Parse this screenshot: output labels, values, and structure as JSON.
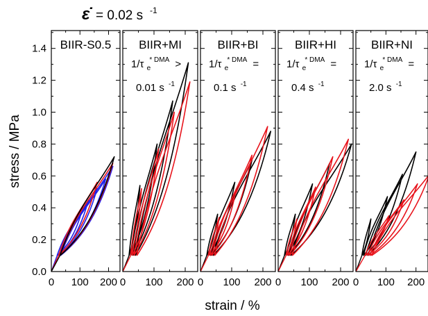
{
  "rate": {
    "symbol": "ε̇",
    "value_text": "= 0.02 s",
    "unit_exp": "-1"
  },
  "axes": {
    "ylabel": "stress / MPa",
    "xlabel": "strain / %",
    "y_ticks": [
      "0.0",
      "0.2",
      "0.4",
      "0.6",
      "0.8",
      "1.0",
      "1.2",
      "1.4"
    ],
    "x_ticks": [
      "0",
      "100",
      "200"
    ]
  },
  "colors": {
    "black": "#000000",
    "red": "#e8141c",
    "blue": "#1f1fe8"
  },
  "chart_data": [
    {
      "type": "line",
      "title": "BIIR-S0.5",
      "annotation": null,
      "xlim": [
        0,
        240
      ],
      "ylim": [
        0,
        1.5
      ],
      "grid": false,
      "series": [
        {
          "color": "blue",
          "cycles": [
            {
              "xmin": 20,
              "xmax": 110,
              "ymax": 0.4
            },
            {
              "xmin": 25,
              "xmax": 130,
              "ymax": 0.45
            },
            {
              "xmin": 28,
              "xmax": 160,
              "ymax": 0.52
            },
            {
              "xmin": 30,
              "xmax": 190,
              "ymax": 0.58
            },
            {
              "xmin": 32,
              "xmax": 215,
              "ymax": 0.66
            }
          ]
        },
        {
          "color": "red",
          "cycles": [
            {
              "xmin": 25,
              "xmax": 160,
              "ymax": 0.56
            },
            {
              "xmin": 30,
              "xmax": 215,
              "ymax": 0.68
            }
          ]
        },
        {
          "color": "black",
          "cycles": [
            {
              "xmin": 30,
              "xmax": 220,
              "ymax": 0.72
            }
          ]
        }
      ]
    },
    {
      "type": "line",
      "title": "BIIR+MI",
      "annotation": {
        "prefix": "1/τ",
        "sub": "e",
        "sup": "* DMA",
        "rel": ">",
        "value": "0.01 s",
        "exp": "-1"
      },
      "xlim": [
        0,
        240
      ],
      "ylim": [
        0,
        1.5
      ],
      "grid": false,
      "series": [
        {
          "color": "black",
          "cycles": [
            {
              "xmin": 20,
              "xmax": 55,
              "ymax": 0.54
            },
            {
              "xmin": 25,
              "xmax": 110,
              "ymax": 0.8
            },
            {
              "xmin": 32,
              "xmax": 160,
              "ymax": 1.07
            },
            {
              "xmin": 40,
              "xmax": 210,
              "ymax": 1.31
            }
          ]
        },
        {
          "color": "red",
          "cycles": [
            {
              "xmin": 25,
              "xmax": 60,
              "ymax": 0.52
            },
            {
              "xmin": 30,
              "xmax": 115,
              "ymax": 0.77
            },
            {
              "xmin": 36,
              "xmax": 165,
              "ymax": 1.0
            },
            {
              "xmin": 45,
              "xmax": 215,
              "ymax": 1.19
            }
          ]
        }
      ]
    },
    {
      "type": "line",
      "title": "BIIR+BI",
      "annotation": {
        "prefix": "1/τ",
        "sub": "e",
        "sup": "* DMA",
        "rel": "=",
        "value": "0.1 s",
        "exp": "-1"
      },
      "xlim": [
        0,
        240
      ],
      "ylim": [
        0,
        1.5
      ],
      "grid": false,
      "series": [
        {
          "color": "black",
          "cycles": [
            {
              "xmin": 20,
              "xmax": 55,
              "ymax": 0.36
            },
            {
              "xmin": 25,
              "xmax": 110,
              "ymax": 0.56
            },
            {
              "xmin": 32,
              "xmax": 165,
              "ymax": 0.7
            },
            {
              "xmin": 40,
              "xmax": 225,
              "ymax": 0.88
            }
          ]
        },
        {
          "color": "red",
          "cycles": [
            {
              "xmin": 25,
              "xmax": 60,
              "ymax": 0.34
            },
            {
              "xmin": 30,
              "xmax": 115,
              "ymax": 0.52
            },
            {
              "xmin": 36,
              "xmax": 165,
              "ymax": 0.73
            },
            {
              "xmin": 45,
              "xmax": 215,
              "ymax": 0.91
            }
          ]
        }
      ]
    },
    {
      "type": "line",
      "title": "BIIR+HI",
      "annotation": {
        "prefix": "1/τ",
        "sub": "e",
        "sup": "* DMA",
        "rel": "=",
        "value": "0.4 s",
        "exp": "-1"
      },
      "xlim": [
        0,
        240
      ],
      "ylim": [
        0,
        1.5
      ],
      "grid": false,
      "series": [
        {
          "color": "black",
          "cycles": [
            {
              "xmin": 20,
              "xmax": 55,
              "ymax": 0.36
            },
            {
              "xmin": 25,
              "xmax": 110,
              "ymax": 0.55
            },
            {
              "xmin": 32,
              "xmax": 165,
              "ymax": 0.68
            },
            {
              "xmin": 40,
              "xmax": 235,
              "ymax": 0.8
            }
          ]
        },
        {
          "color": "red",
          "cycles": [
            {
              "xmin": 25,
              "xmax": 60,
              "ymax": 0.33
            },
            {
              "xmin": 30,
              "xmax": 120,
              "ymax": 0.53
            },
            {
              "xmin": 36,
              "xmax": 175,
              "ymax": 0.72
            },
            {
              "xmin": 45,
              "xmax": 225,
              "ymax": 0.83
            }
          ]
        }
      ]
    },
    {
      "type": "line",
      "title": "BIIR+NI",
      "annotation": {
        "prefix": "1/τ",
        "sub": "e",
        "sup": "* DMA",
        "rel": "=",
        "value": "2.0 s",
        "exp": "-1"
      },
      "xlim": [
        0,
        240
      ],
      "ylim": [
        0,
        1.5
      ],
      "grid": false,
      "series": [
        {
          "color": "black",
          "cycles": [
            {
              "xmin": 20,
              "xmax": 50,
              "ymax": 0.33
            },
            {
              "xmin": 25,
              "xmax": 105,
              "ymax": 0.47
            },
            {
              "xmin": 32,
              "xmax": 155,
              "ymax": 0.61
            },
            {
              "xmin": 40,
              "xmax": 200,
              "ymax": 0.75
            }
          ]
        },
        {
          "color": "red",
          "cycles": [
            {
              "xmin": 30,
              "xmax": 110,
              "ymax": 0.35
            },
            {
              "xmin": 38,
              "xmax": 160,
              "ymax": 0.45
            },
            {
              "xmin": 46,
              "xmax": 205,
              "ymax": 0.55
            },
            {
              "xmin": 52,
              "xmax": 245,
              "ymax": 0.61
            }
          ]
        }
      ]
    }
  ]
}
